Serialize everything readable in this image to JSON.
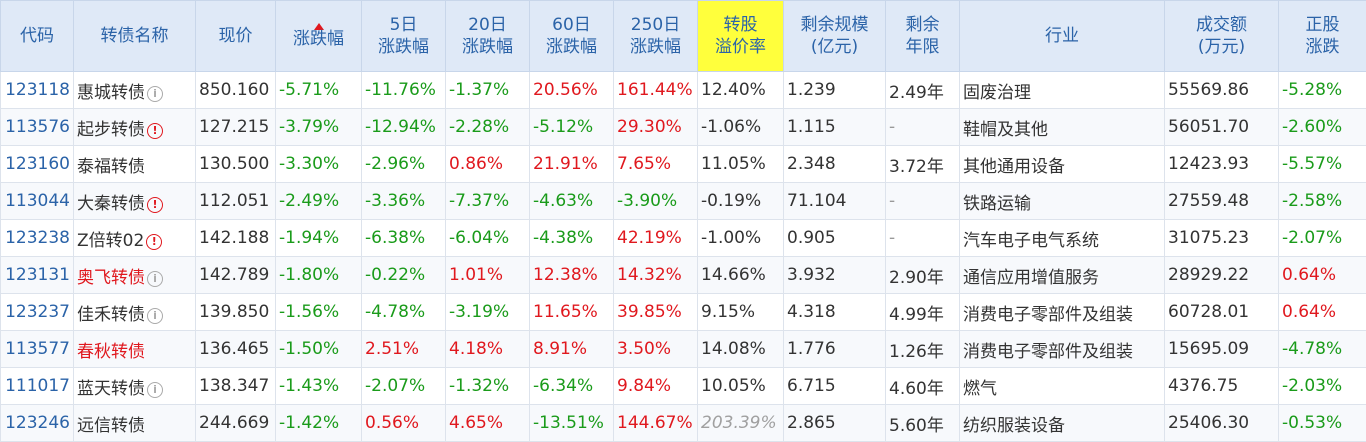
{
  "headers": {
    "code": "代码",
    "name": "转债名称",
    "price": "现价",
    "chg": "涨跌幅",
    "chg5_a": "5日",
    "chg5_b": "涨跌幅",
    "chg20_a": "20日",
    "chg20_b": "涨跌幅",
    "chg60_a": "60日",
    "chg60_b": "涨跌幅",
    "chg250_a": "250日",
    "chg250_b": "涨跌幅",
    "premium_a": "转股",
    "premium_b": "溢价率",
    "scale_a": "剩余规模",
    "scale_b": "(亿元)",
    "years_a": "剩余",
    "years_b": "年限",
    "industry": "行业",
    "volume_a": "成交额",
    "volume_b": "(万元)",
    "stock_a": "正股",
    "stock_b": "涨跌"
  },
  "colors": {
    "up": "#e0181e",
    "down": "#1a9b1a",
    "header_bg": "#dfe9f7",
    "highlight": "#ffff3c",
    "link": "#2b63a8"
  },
  "rows": [
    {
      "code": "123118",
      "name": "惠城转债",
      "icon": "info-icon",
      "name_red": false,
      "price": "850.160",
      "chg": "-5.71%",
      "chg5": "-11.76%",
      "chg20": "-1.37%",
      "chg60": "20.56%",
      "chg250": "161.44%",
      "premium": "12.40%",
      "scale": "1.239",
      "years": "2.49年",
      "industry": "固废治理",
      "volume": "55569.86",
      "stock": "-5.28%"
    },
    {
      "code": "113576",
      "name": "起步转债",
      "icon": "warning-icon",
      "name_red": false,
      "price": "127.215",
      "chg": "-3.79%",
      "chg5": "-12.94%",
      "chg20": "-2.28%",
      "chg60": "-5.12%",
      "chg250": "29.30%",
      "premium": "-1.06%",
      "scale": "1.115",
      "years": "-",
      "industry": "鞋帽及其他",
      "volume": "56051.70",
      "stock": "-2.60%"
    },
    {
      "code": "123160",
      "name": "泰福转债",
      "icon": "",
      "name_red": false,
      "price": "130.500",
      "chg": "-3.30%",
      "chg5": "-2.96%",
      "chg20": "0.86%",
      "chg60": "21.91%",
      "chg250": "7.65%",
      "premium": "11.05%",
      "scale": "2.348",
      "years": "3.72年",
      "industry": "其他通用设备",
      "volume": "12423.93",
      "stock": "-5.57%"
    },
    {
      "code": "113044",
      "name": "大秦转债",
      "icon": "warning-icon",
      "name_red": false,
      "price": "112.051",
      "chg": "-2.49%",
      "chg5": "-3.36%",
      "chg20": "-7.37%",
      "chg60": "-4.63%",
      "chg250": "-3.90%",
      "premium": "-0.19%",
      "scale": "71.104",
      "years": "-",
      "industry": "铁路运输",
      "volume": "27559.48",
      "stock": "-2.58%"
    },
    {
      "code": "123238",
      "name": "Z倍转02",
      "icon": "warning-icon",
      "name_red": false,
      "price": "142.188",
      "chg": "-1.94%",
      "chg5": "-6.38%",
      "chg20": "-6.04%",
      "chg60": "-4.38%",
      "chg250": "42.19%",
      "premium": "-1.00%",
      "scale": "0.905",
      "years": "-",
      "industry": "汽车电子电气系统",
      "volume": "31075.23",
      "stock": "-2.07%"
    },
    {
      "code": "123131",
      "name": "奥飞转债",
      "icon": "info-icon",
      "name_red": true,
      "price": "142.789",
      "chg": "-1.80%",
      "chg5": "-0.22%",
      "chg20": "1.01%",
      "chg60": "12.38%",
      "chg250": "14.32%",
      "premium": "14.66%",
      "scale": "3.932",
      "years": "2.90年",
      "industry": "通信应用增值服务",
      "volume": "28929.22",
      "stock": "0.64%"
    },
    {
      "code": "123237",
      "name": "佳禾转债",
      "icon": "info-icon",
      "name_red": false,
      "price": "139.850",
      "chg": "-1.56%",
      "chg5": "-4.78%",
      "chg20": "-3.19%",
      "chg60": "11.65%",
      "chg250": "39.85%",
      "premium": "9.15%",
      "scale": "4.318",
      "years": "4.99年",
      "industry": "消费电子零部件及组装",
      "volume": "60728.01",
      "stock": "0.64%"
    },
    {
      "code": "113577",
      "name": "春秋转债",
      "icon": "",
      "name_red": true,
      "price": "136.465",
      "chg": "-1.50%",
      "chg5": "2.51%",
      "chg20": "4.18%",
      "chg60": "8.91%",
      "chg250": "3.50%",
      "premium": "14.08%",
      "scale": "1.776",
      "years": "1.26年",
      "industry": "消费电子零部件及组装",
      "volume": "15695.09",
      "stock": "-4.78%"
    },
    {
      "code": "111017",
      "name": "蓝天转债",
      "icon": "info-icon",
      "name_red": false,
      "price": "138.347",
      "chg": "-1.43%",
      "chg5": "-2.07%",
      "chg20": "-1.32%",
      "chg60": "-6.34%",
      "chg250": "9.84%",
      "premium": "10.05%",
      "scale": "6.715",
      "years": "4.60年",
      "industry": "燃气",
      "volume": "4376.75",
      "stock": "-2.03%"
    },
    {
      "code": "123246",
      "name": "远信转债",
      "icon": "",
      "name_red": false,
      "price": "244.669",
      "chg": "-1.42%",
      "chg5": "0.56%",
      "chg20": "4.65%",
      "chg60": "-13.51%",
      "chg250": "144.67%",
      "premium": "203.39%",
      "premium_italic": true,
      "scale": "2.865",
      "years": "5.60年",
      "industry": "纺织服装设备",
      "volume": "25406.30",
      "stock": "-0.53%"
    }
  ]
}
